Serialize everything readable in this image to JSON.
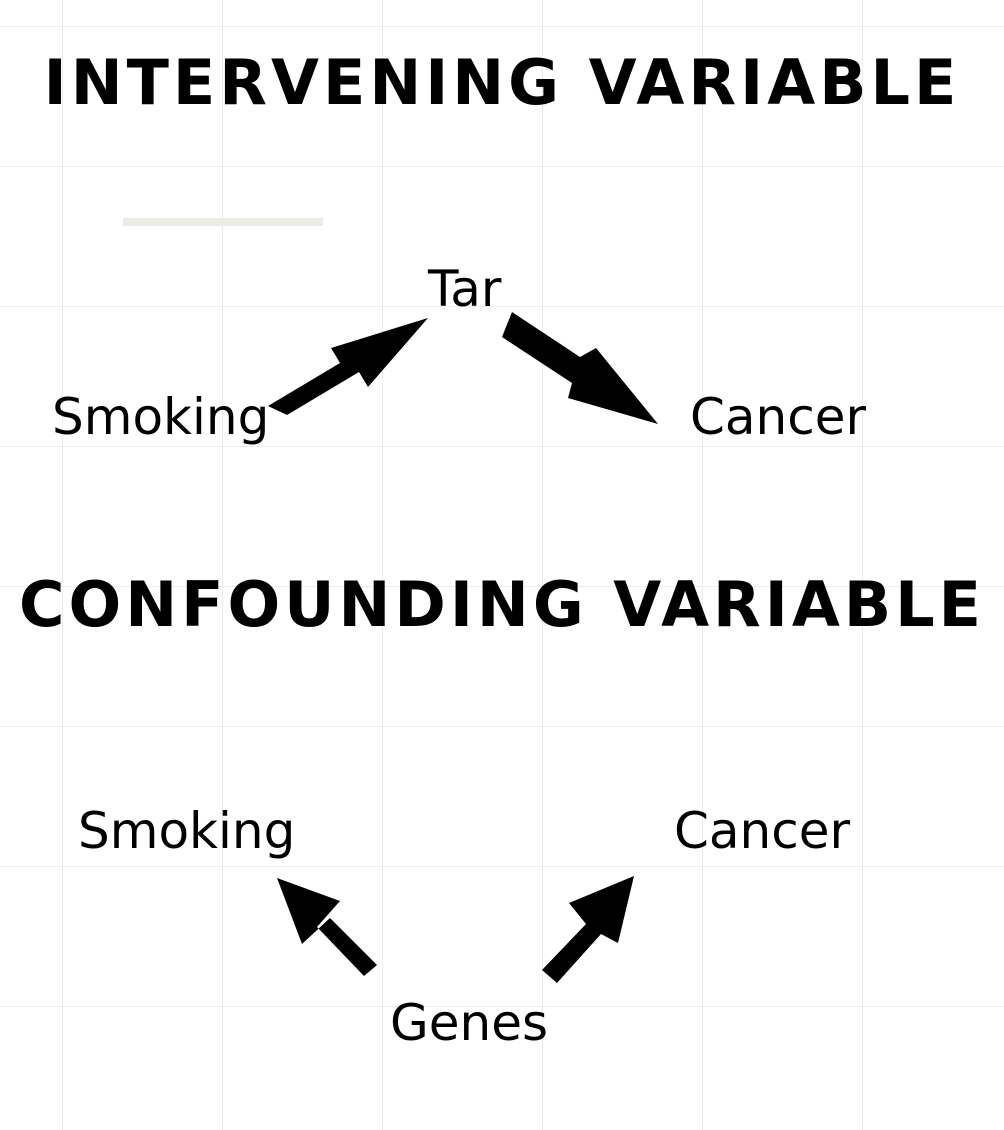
{
  "intervening": {
    "title": "INTERVENING VARIABLE",
    "nodes": {
      "smoking": "Smoking",
      "tar": "Tar",
      "cancer": "Cancer"
    }
  },
  "confounding": {
    "title": "CONFOUNDING VARIABLE",
    "nodes": {
      "smoking": "Smoking",
      "cancer": "Cancer",
      "genes": "Genes"
    }
  },
  "colors": {
    "arrow": "#000000",
    "text": "#000000",
    "grid": "#ececec",
    "divider": "#eeebe6"
  }
}
